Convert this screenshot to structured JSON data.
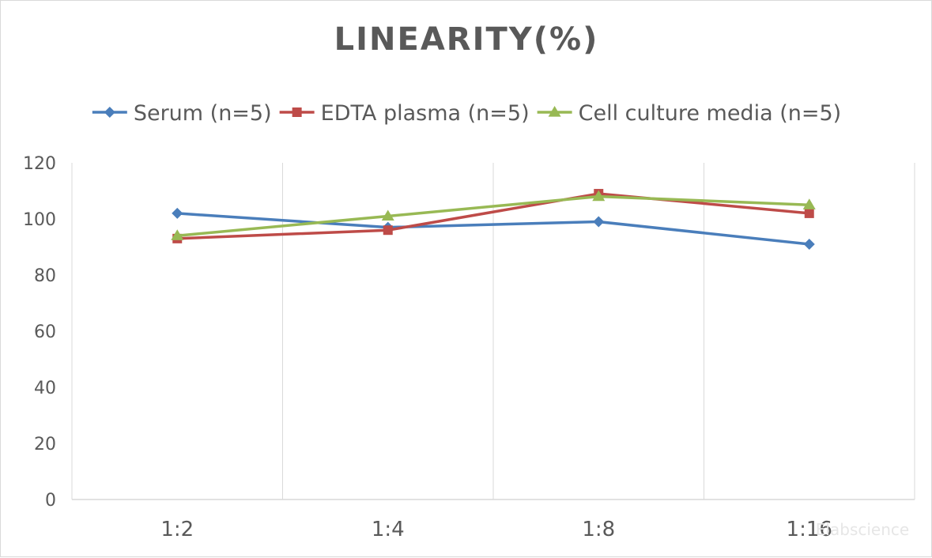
{
  "chart_data": {
    "type": "line",
    "title": "LINEARITY(%)",
    "categories": [
      "1:2",
      "1:4",
      "1:8",
      "1:16"
    ],
    "ylim": [
      0,
      120
    ],
    "yticks": [
      0,
      20,
      40,
      60,
      80,
      100,
      120
    ],
    "grid": "vertical",
    "legend_position": "top",
    "series": [
      {
        "name": "Serum (n=5)",
        "color": "#4a7ebb",
        "marker": "diamond",
        "values": [
          102,
          97,
          99,
          91
        ]
      },
      {
        "name": "EDTA plasma (n=5)",
        "color": "#be4b48",
        "marker": "square",
        "values": [
          93,
          96,
          109,
          102
        ]
      },
      {
        "name": "Cell culture media (n=5)",
        "color": "#98b954",
        "marker": "triangle",
        "values": [
          94,
          101,
          108,
          105
        ]
      }
    ],
    "watermark": "Elabscience"
  }
}
